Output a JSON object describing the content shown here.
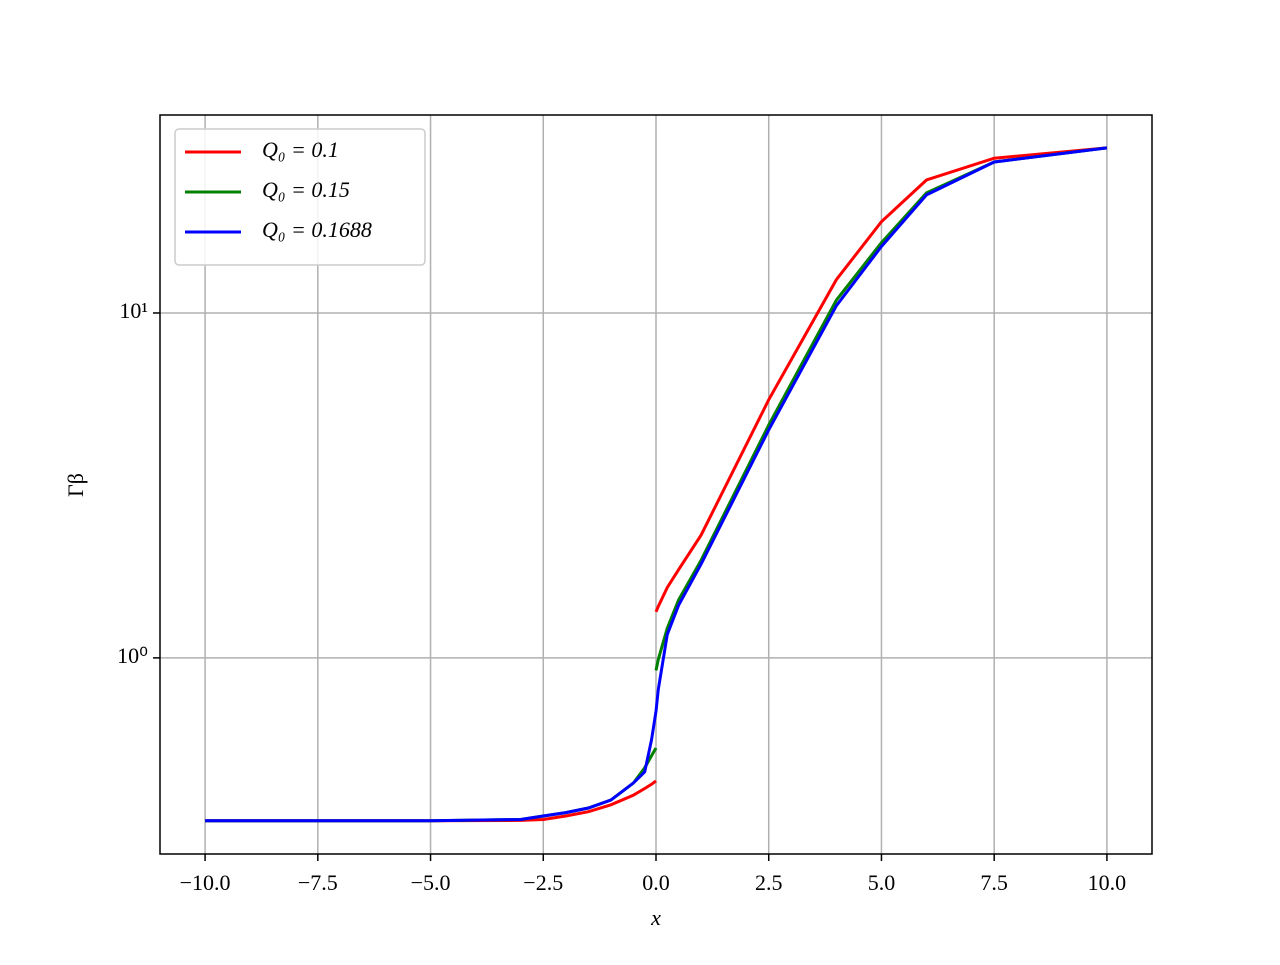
{
  "chart_data": {
    "type": "line",
    "log_y": true,
    "grid": true,
    "legend": "upper left",
    "xlabel": "x",
    "ylabel": "Γβ",
    "x": [
      -10,
      -7.5,
      -5,
      -3,
      -2.5,
      -2,
      -1.5,
      -1,
      -0.5,
      -0.25,
      -0.1,
      0,
      0,
      0,
      0.05,
      0.25,
      0.5,
      1,
      2.5,
      4,
      5,
      6,
      7.5,
      10
    ],
    "series": [
      {
        "name": "Q₀ = 0.1",
        "color": "#ff0000",
        "values": [
          0.337,
          0.337,
          0.337,
          0.338,
          0.34,
          0.348,
          0.358,
          0.375,
          0.4,
          0.418,
          0.43,
          0.44,
          null,
          1.36,
          1.41,
          1.6,
          1.8,
          2.27,
          5.6,
          12.5,
          18.4,
          24.3,
          28.1,
          30.1
        ]
      },
      {
        "name": "Q₀ = 0.15",
        "color": "#008000",
        "values": [
          0.337,
          0.337,
          0.337,
          0.34,
          0.348,
          0.356,
          0.367,
          0.387,
          0.434,
          0.48,
          0.52,
          0.548,
          null,
          0.92,
          0.99,
          1.22,
          1.47,
          1.92,
          4.73,
          10.9,
          16,
          22.3,
          27.4,
          30.1
        ]
      },
      {
        "name": "Q₀ = 0.1688",
        "color": "#0000ff",
        "values": [
          0.337,
          0.337,
          0.337,
          0.34,
          0.348,
          0.356,
          0.367,
          0.387,
          0.434,
          0.467,
          0.578,
          0.7,
          null,
          0.7,
          0.81,
          1.17,
          1.42,
          1.87,
          4.58,
          10.5,
          15.6,
          22,
          27.4,
          30.1
        ]
      }
    ],
    "xlim": [
      -11,
      11
    ],
    "xticks": [
      {
        "value": -10,
        "label": "−10.0"
      },
      {
        "value": -7.5,
        "label": "−7.5"
      },
      {
        "value": -5,
        "label": "−5.0"
      },
      {
        "value": -2.5,
        "label": "−2.5"
      },
      {
        "value": 0,
        "label": "0.0"
      },
      {
        "value": 2.5,
        "label": "2.5"
      },
      {
        "value": 5,
        "label": "5.0"
      },
      {
        "value": 7.5,
        "label": "7.5"
      },
      {
        "value": 10,
        "label": "10.0"
      }
    ],
    "ylim": [
      0.27,
      37.5
    ],
    "yticks": [
      {
        "value": 1,
        "label": "10⁰"
      },
      {
        "value": 10,
        "label": "10¹"
      }
    ]
  }
}
